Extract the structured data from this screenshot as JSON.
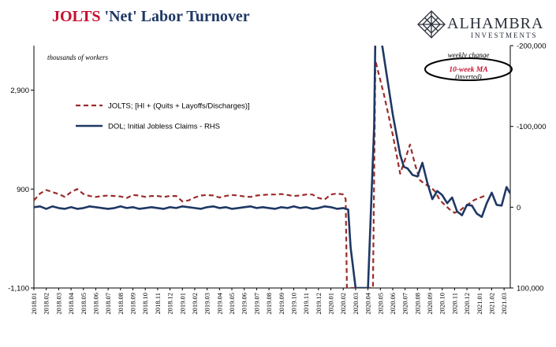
{
  "title": {
    "part1": "JOLTS",
    "part2": "'Net' Labor Turnover"
  },
  "logo": {
    "name": "ALHAMBRA",
    "subtitle": "INVESTMENTS",
    "icon": "diamond-lattice-icon"
  },
  "colors": {
    "jolts": "#9b2c2c",
    "dol": "#1f3864",
    "title_red": "#c8102e",
    "title_blue": "#1f3864",
    "annotation_red": "#c8102e"
  },
  "chart_data": {
    "type": "line",
    "left_axis_note": "thousands of workers",
    "right_axis_note": {
      "line1": "weekly change",
      "line2": "10-week MA",
      "line3": "(inverted)"
    },
    "left_axis": {
      "ylim": [
        -1100,
        3800
      ],
      "ticks": [
        -1100,
        900,
        2900
      ],
      "tick_labels": [
        "-1,100",
        "900",
        "2,900"
      ]
    },
    "right_axis": {
      "inverted": true,
      "ylim": [
        -200000,
        100000
      ],
      "ticks": [
        -200000,
        -100000,
        0,
        100000
      ],
      "tick_labels": [
        "-200,000",
        "-100,000",
        "0",
        "100,000"
      ]
    },
    "x_labels": [
      "2018.01",
      "2018.02",
      "2018.03",
      "2018.04",
      "2018.05",
      "2018.06",
      "2018.07",
      "2018.08",
      "2018.09",
      "2018.10",
      "2018.11",
      "2018.12",
      "2019.01",
      "2019.02",
      "2019.03",
      "2019.04",
      "2019.05",
      "2019.06",
      "2019.07",
      "2019.08",
      "2019.09",
      "2019.10",
      "2019.11",
      "2019.12",
      "2020.01",
      "2020.02",
      "2020.03",
      "2020.04",
      "2020.05",
      "2020.06",
      "2020.07",
      "2020.08",
      "2020.09",
      "2020.10",
      "2020.11",
      "2020.12",
      "2021.01",
      "2021.02",
      "2021.03"
    ],
    "x_range": [
      0,
      38.5
    ],
    "series": [
      {
        "name": "JOLTS; [HI + (Quits + Layoffs/Discharges)]",
        "axis": "left",
        "style": "dashed",
        "x": [
          0,
          0.5,
          1,
          1.5,
          2,
          2.5,
          3,
          3.5,
          4,
          4.5,
          5,
          5.5,
          6,
          6.5,
          7,
          7.5,
          8,
          8.5,
          9,
          9.5,
          10,
          10.5,
          11,
          11.5,
          12,
          12.5,
          13,
          13.5,
          14,
          14.5,
          15,
          15.5,
          16,
          16.5,
          17,
          17.5,
          18,
          18.5,
          19,
          19.5,
          20,
          20.5,
          21,
          21.5,
          22,
          22.5,
          23,
          23.5,
          24,
          24.5,
          25,
          25.2,
          25.3,
          25.6,
          27.4,
          27.6,
          27.8,
          28.3,
          29,
          29.6,
          30,
          30.4,
          30.8,
          31.2,
          31.6,
          32,
          32.4,
          32.8,
          33.2,
          33.6,
          34,
          34.4,
          34.8,
          35.2,
          35.6,
          36,
          36.4
        ],
        "y": [
          670,
          810,
          880,
          840,
          800,
          740,
          840,
          900,
          800,
          760,
          740,
          760,
          770,
          760,
          750,
          720,
          780,
          770,
          740,
          760,
          760,
          740,
          760,
          760,
          650,
          670,
          730,
          770,
          780,
          770,
          730,
          760,
          780,
          770,
          750,
          740,
          770,
          780,
          790,
          790,
          800,
          780,
          760,
          770,
          790,
          790,
          720,
          690,
          790,
          810,
          790,
          700,
          -1100,
          -1100,
          -1100,
          3500,
          3300,
          2800,
          2000,
          1210,
          1500,
          1800,
          1400,
          1080,
          1000,
          950,
          860,
          680,
          580,
          490,
          420,
          460,
          540,
          610,
          680,
          720,
          760
        ]
      },
      {
        "name": "DOL; Initial Jobless Claims - RHS",
        "axis": "right",
        "style": "solid",
        "x": [
          0,
          0.5,
          1,
          1.5,
          2,
          2.5,
          3,
          3.5,
          4,
          4.5,
          5,
          5.5,
          6,
          6.5,
          7,
          7.5,
          8,
          8.5,
          9,
          9.5,
          10,
          10.5,
          11,
          11.5,
          12,
          12.5,
          13,
          13.5,
          14,
          14.5,
          15,
          15.5,
          16,
          16.5,
          17,
          17.5,
          18,
          18.5,
          19,
          19.5,
          20,
          20.5,
          21,
          21.5,
          22,
          22.5,
          23,
          23.5,
          24,
          24.5,
          25,
          25.4,
          25.6,
          26.0,
          27.0,
          27.5,
          27.6,
          28.0,
          29.0,
          29.6,
          29.9,
          30.2,
          30.6,
          31,
          31.4,
          31.8,
          32.2,
          32.6,
          33,
          33.4,
          33.8,
          34.2,
          34.6,
          35,
          35.4,
          35.8,
          36.2,
          36.6,
          37,
          37.4,
          37.8,
          38.2,
          38.5
        ],
        "y": [
          0,
          -1000,
          2000,
          -1000,
          1000,
          2000,
          0,
          2000,
          1000,
          -1000,
          0,
          1000,
          2000,
          1000,
          -1000,
          1000,
          0,
          2000,
          1000,
          0,
          1000,
          2000,
          0,
          1000,
          -1000,
          0,
          1000,
          2000,
          0,
          -1000,
          1000,
          0,
          2000,
          1000,
          0,
          -1000,
          1000,
          0,
          1000,
          2000,
          0,
          1000,
          -1000,
          1000,
          0,
          2000,
          1000,
          -1000,
          0,
          2000,
          1000,
          3000,
          50000,
          100000,
          100000,
          -100000,
          -215000,
          -215000,
          -115000,
          -65000,
          -50000,
          -48000,
          -40000,
          -38000,
          -55000,
          -30000,
          -10000,
          -20000,
          -15000,
          -5000,
          -12000,
          5000,
          10000,
          -3000,
          -2000,
          8000,
          12000,
          -5000,
          -18000,
          -3000,
          -2000,
          -25000,
          -17000
        ]
      }
    ]
  }
}
